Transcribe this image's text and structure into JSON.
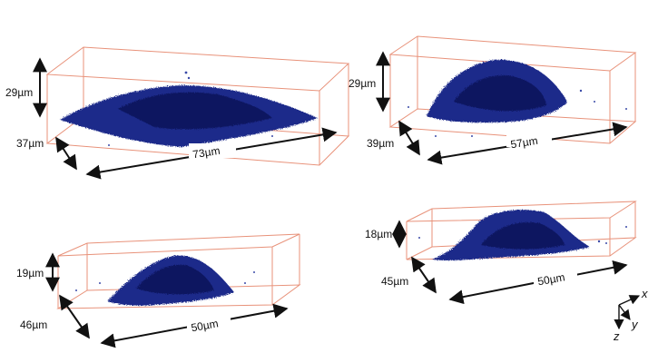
{
  "panels": [
    {
      "id": "a",
      "height": "29µm",
      "depth": "37µm",
      "width": "73µm"
    },
    {
      "id": "b",
      "height": "29µm",
      "depth": "39µm",
      "width": "57µm"
    },
    {
      "id": "c",
      "height": "19µm",
      "depth": "46µm",
      "width": "50µm"
    },
    {
      "id": "d",
      "height": "18µm",
      "depth": "45µm",
      "width": "50µm"
    }
  ],
  "axes": {
    "x": "x",
    "y": "y",
    "z": "z"
  },
  "colors": {
    "cell": "#1d2a8a",
    "cell_dark": "#0d1660",
    "box": "#e8927a",
    "arrow": "#111111"
  }
}
